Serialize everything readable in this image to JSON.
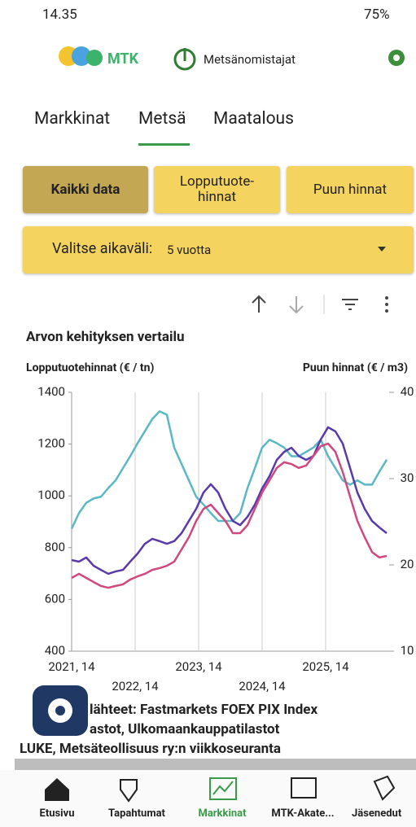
{
  "status_bar": {
    "time": "14.35",
    "battery": "75%"
  },
  "header": {
    "brand": "MTK",
    "site": "Metsänomistajat"
  },
  "tabs": [
    "Markkinat",
    "Metsä",
    "Maatalous"
  ],
  "filters": [
    "Kaikki data",
    "Lopputuote-hinnat",
    "Puun hinnat"
  ],
  "range": {
    "label": "Valitse aikaväli:",
    "value": "5 vuotta"
  },
  "chart_data": {
    "type": "line",
    "title": "Arvon kehityksen vertailu",
    "y_label": "Lopputuotehinnat (€ / tn)",
    "y2_label": "Puun hinnat (€ / m3)",
    "x": [
      0,
      6,
      12,
      18,
      24,
      30,
      36,
      42,
      48,
      54,
      60,
      66,
      72,
      78,
      84,
      90,
      96,
      102,
      108,
      114,
      120,
      126,
      132,
      138,
      144,
      150,
      156,
      162,
      168,
      174,
      180,
      186,
      192,
      198,
      204,
      210,
      216,
      222,
      228,
      234,
      240,
      246,
      252,
      258
    ],
    "xlim": [
      0,
      260
    ],
    "xticks": [
      {
        "value": 0,
        "label": "2021, 14"
      },
      {
        "value": 52,
        "label": "2022, 14"
      },
      {
        "value": 104,
        "label": "2023, 14"
      },
      {
        "value": 156,
        "label": "2024, 14"
      },
      {
        "value": 208,
        "label": "2025, 14"
      }
    ],
    "ylim": [
      400,
      1400
    ],
    "yticks": [
      400,
      600,
      800,
      1000,
      1200,
      1400
    ],
    "y2lim": [
      10,
      40
    ],
    "y2ticks": [
      10,
      20,
      30,
      40
    ],
    "grid": "x",
    "series": [
      {
        "color": "#5bb8c4",
        "axis": "y2",
        "values": [
          24.2,
          26.0,
          27.2,
          27.7,
          27.9,
          28.9,
          29.8,
          31.2,
          32.6,
          34.1,
          35.5,
          36.9,
          37.8,
          37.4,
          33.6,
          31.7,
          29.8,
          27.9,
          27.0,
          26.0,
          25.1,
          25.1,
          25.1,
          26.0,
          28.9,
          31.2,
          33.6,
          34.5,
          34.1,
          33.6,
          32.6,
          32.6,
          33.1,
          33.6,
          34.5,
          32.6,
          31.2,
          29.8,
          29.3,
          29.8,
          29.3,
          29.3,
          30.8,
          32.2
        ]
      },
      {
        "color": "#5a3aa8",
        "values": [
          752,
          746,
          762,
          730,
          714,
          699,
          708,
          714,
          746,
          777,
          815,
          834,
          825,
          815,
          825,
          856,
          903,
          950,
          1013,
          1045,
          1013,
          950,
          903,
          887,
          919,
          966,
          1029,
          1076,
          1139,
          1170,
          1186,
          1154,
          1139,
          1154,
          1218,
          1265,
          1249,
          1202,
          1108,
          1013,
          950,
          903,
          878,
          856
        ]
      },
      {
        "color": "#d1487f",
        "values": [
          683,
          699,
          683,
          667,
          652,
          645,
          652,
          658,
          677,
          689,
          699,
          714,
          721,
          730,
          746,
          793,
          840,
          903,
          950,
          966,
          934,
          903,
          856,
          856,
          887,
          950,
          1013,
          1060,
          1108,
          1130,
          1123,
          1108,
          1117,
          1154,
          1192,
          1202,
          1170,
          1092,
          997,
          903,
          840,
          783,
          762,
          768
        ]
      }
    ]
  },
  "sources": [
    "lähteet: Fastmarkets FOEX PIX Index",
    "astot, Ulkomaankauppatilastot",
    "LUKE, Metsäteollisuus ry:n viikkoseuranta"
  ],
  "nav": [
    "Etusivu",
    "Tapahtumat",
    "Markkinat",
    "MTK-Akate...",
    "Jäsenedut"
  ]
}
